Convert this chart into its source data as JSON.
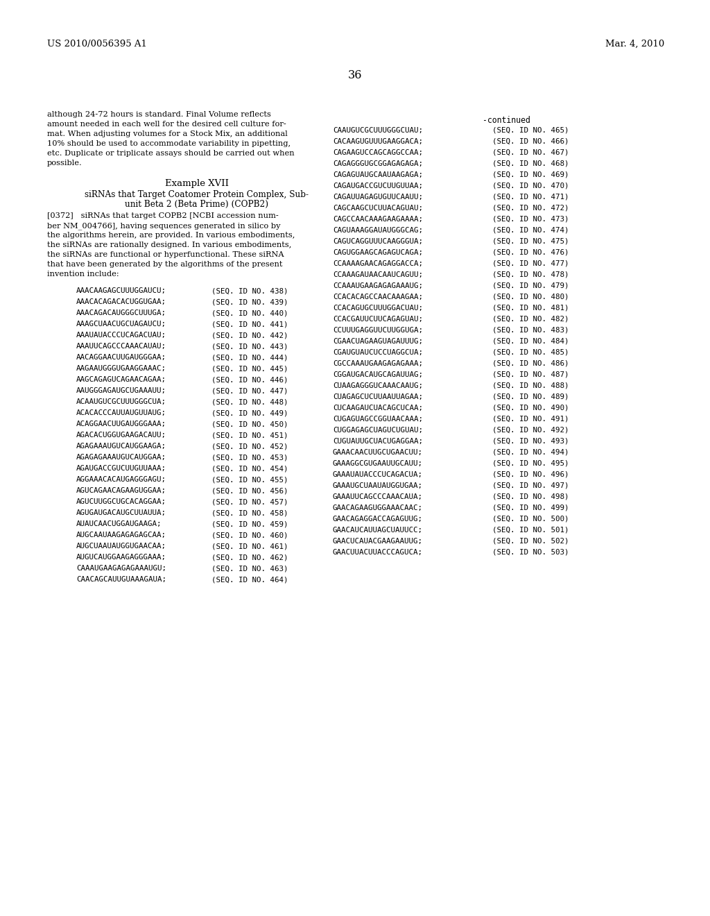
{
  "background_color": "#ffffff",
  "header_left": "US 2010/0056395 A1",
  "header_right": "Mar. 4, 2010",
  "page_number": "36",
  "continued_label": "-continued",
  "left_paragraph1": "although 24-72 hours is standard. Final Volume reflects\namount needed in each well for the desired cell culture for-\nmat. When adjusting volumes for a Stock Mix, an additional\n10% should be used to accommodate variability in pipetting,\netc. Duplicate or triplicate assays should be carried out when\npossible.",
  "example_title": "Example XVII",
  "example_subtitle1": "siRNAs that Target Coatomer Protein Complex, Sub-",
  "example_subtitle2": "unit Beta 2 (Beta Prime) (COPB2)",
  "paragraph_tag": "[0372]",
  "paragraph_text": "   siRNAs that target COPB2 [NCBI accession num-\nber NM_004766], having sequences generated in silico by\nthe algorithms herein, are provided. In various embodiments,\nthe siRNAs are rationally designed. In various embodiments,\nthe siRNAs are functional or hyperfunctional. These siRNA\nthat have been generated by the algorithms of the present\ninvention include:",
  "left_sequences": [
    [
      "AAACAAGAGCUUUGGAUCU;",
      "(SEQ. ID NO. 438)"
    ],
    [
      "AAACACAGACACUGGUGAA;",
      "(SEQ. ID NO. 439)"
    ],
    [
      "AAACAGACAUGGGCUUUGA;",
      "(SEQ. ID NO. 440)"
    ],
    [
      "AAAGCUAACUGCUAGAUCU;",
      "(SEQ. ID NO. 441)"
    ],
    [
      "AAAUAUACCCUCAGACUAU;",
      "(SEQ. ID NO. 442)"
    ],
    [
      "AAAUUCAGCCCAAACAUAU;",
      "(SEQ. ID NO. 443)"
    ],
    [
      "AACAGGAACUUGAUGGGAA;",
      "(SEQ. ID NO. 444)"
    ],
    [
      "AAGAAUGGGUGAAGGAAAC;",
      "(SEQ. ID NO. 445)"
    ],
    [
      "AAGCAGAGUCAGAACAGAA;",
      "(SEQ. ID NO. 446)"
    ],
    [
      "AAUGGGAGAUGCUGAAAUU;",
      "(SEQ. ID NO. 447)"
    ],
    [
      "ACAAUGUCGCUUUGGGCUA;",
      "(SEQ. ID NO. 448)"
    ],
    [
      "ACACACCCAUUAUGUUAUG;",
      "(SEQ. ID NO. 449)"
    ],
    [
      "ACAGGAACUUGAUGGGAAA;",
      "(SEQ. ID NO. 450)"
    ],
    [
      "AGACACUGGUGAAGACAUU;",
      "(SEQ. ID NO. 451)"
    ],
    [
      "AGAGAAAUGUCAUGGAAGA;",
      "(SEQ. ID NO. 452)"
    ],
    [
      "AGAGAGAAAUGUCAUGGAA;",
      "(SEQ. ID NO. 453)"
    ],
    [
      "AGAUGACCGUCUUGUUAAA;",
      "(SEQ. ID NO. 454)"
    ],
    [
      "AGGAAACACAUGAGGGAGU;",
      "(SEQ. ID NO. 455)"
    ],
    [
      "AGUCAGAACAGAAGUGGAA;",
      "(SEQ. ID NO. 456)"
    ],
    [
      "AGUCUUGGCUGCACAGGAA;",
      "(SEQ. ID NO. 457)"
    ],
    [
      "AGUGAUGACAUGCUUAUUA;",
      "(SEQ. ID NO. 458)"
    ],
    [
      "AUAUCAACUGGAUGAAGA;",
      "(SEQ. ID NO. 459)"
    ],
    [
      "AUGCAAUAAGAGAGAGCAA;",
      "(SEQ. ID NO. 460)"
    ],
    [
      "AUGCUAAUAUGGUGAACAA;",
      "(SEQ. ID NO. 461)"
    ],
    [
      "AUGUCAUGGAAGAGGGAAA;",
      "(SEQ. ID NO. 462)"
    ],
    [
      "CAAAUGAAGAGAGAAAUGU;",
      "(SEQ. ID NO. 463)"
    ],
    [
      "CAACAGCAUUGUAAAGAUA;",
      "(SEQ. ID NO. 464)"
    ]
  ],
  "right_sequences": [
    [
      "CAAUGUCGCUUUGGGCUAU;",
      "(SEQ. ID NO. 465)"
    ],
    [
      "CACAAGUGUUUGAAGGACA;",
      "(SEQ. ID NO. 466)"
    ],
    [
      "CAGAAGUCCAGCAGGCCAA;",
      "(SEQ. ID NO. 467)"
    ],
    [
      "CAGAGGGUGCGGAGAGAGA;",
      "(SEQ. ID NO. 468)"
    ],
    [
      "CAGAGUAUGCAAUAAGAGA;",
      "(SEQ. ID NO. 469)"
    ],
    [
      "CAGAUGACCGUCUUGUUAA;",
      "(SEQ. ID NO. 470)"
    ],
    [
      "CAGAUUAGAGUGUUCAAUU;",
      "(SEQ. ID NO. 471)"
    ],
    [
      "CAGCAAGCUCUUACAGUAU;",
      "(SEQ. ID NO. 472)"
    ],
    [
      "CAGCCAACAAAGAAGAAAA;",
      "(SEQ. ID NO. 473)"
    ],
    [
      "CAGUAAAGGAUAUGGGCAG;",
      "(SEQ. ID NO. 474)"
    ],
    [
      "CAGUCAGGUUUCAAGGGUA;",
      "(SEQ. ID NO. 475)"
    ],
    [
      "CAGUGGAAGCAGAGUCAGA;",
      "(SEQ. ID NO. 476)"
    ],
    [
      "CCAAAAGAACAGAGGACCA;",
      "(SEQ. ID NO. 477)"
    ],
    [
      "CCAAAGAUAACAAUCAGUU;",
      "(SEQ. ID NO. 478)"
    ],
    [
      "CCAAAUGAAGAGAGAAAUG;",
      "(SEQ. ID NO. 479)"
    ],
    [
      "CCACACAGCCAACAAAGAA;",
      "(SEQ. ID NO. 480)"
    ],
    [
      "CCACAGUGCUUUGGACUAU;",
      "(SEQ. ID NO. 481)"
    ],
    [
      "CCACGAUUCUUCAGAGUAU;",
      "(SEQ. ID NO. 482)"
    ],
    [
      "CCUUUGAGGUUCUUGGUGA;",
      "(SEQ. ID NO. 483)"
    ],
    [
      "CGAACUAGAAGUAGAUUUG;",
      "(SEQ. ID NO. 484)"
    ],
    [
      "CGAUGUAUCUCCUAGGCUA;",
      "(SEQ. ID NO. 485)"
    ],
    [
      "CGCCAAAUGAAGAGAGAAA;",
      "(SEQ. ID NO. 486)"
    ],
    [
      "CGGAUGACAUGCAGAUUAG;",
      "(SEQ. ID NO. 487)"
    ],
    [
      "CUAAGAGGGUCAAACAAUG;",
      "(SEQ. ID NO. 488)"
    ],
    [
      "CUAGAGCUCUUAAUUAGAA;",
      "(SEQ. ID NO. 489)"
    ],
    [
      "CUCAAGAUCUACAGCUCAA;",
      "(SEQ. ID NO. 490)"
    ],
    [
      "CUGAGUAGCCGGUAACAAA;",
      "(SEQ. ID NO. 491)"
    ],
    [
      "CUGGAGAGCUAGUCUGUAU;",
      "(SEQ. ID NO. 492)"
    ],
    [
      "CUGUAUUGCUACUGAGGAA;",
      "(SEQ. ID NO. 493)"
    ],
    [
      "GAAACAACUUGCUGAACUU;",
      "(SEQ. ID NO. 494)"
    ],
    [
      "GAAAGGCGUGAAUUGCAUU;",
      "(SEQ. ID NO. 495)"
    ],
    [
      "GAAAUAUACCCUCAGACUA;",
      "(SEQ. ID NO. 496)"
    ],
    [
      "GAAAUGCUAAUAUGGUGAA;",
      "(SEQ. ID NO. 497)"
    ],
    [
      "GAAAUUCAGCCCAAACAUA;",
      "(SEQ. ID NO. 498)"
    ],
    [
      "GAACAGAAGUGGAAACAAC;",
      "(SEQ. ID NO. 499)"
    ],
    [
      "GAACAGAGGACCAGAGUUG;",
      "(SEQ. ID NO. 500)"
    ],
    [
      "GAACAUCAUUAGCUAUUCC;",
      "(SEQ. ID NO. 501)"
    ],
    [
      "GAACUCAUACGAAGAAUUG;",
      "(SEQ. ID NO. 502)"
    ],
    [
      "GAACUUACUUACCCAGUCA;",
      "(SEQ. ID NO. 503)"
    ]
  ]
}
